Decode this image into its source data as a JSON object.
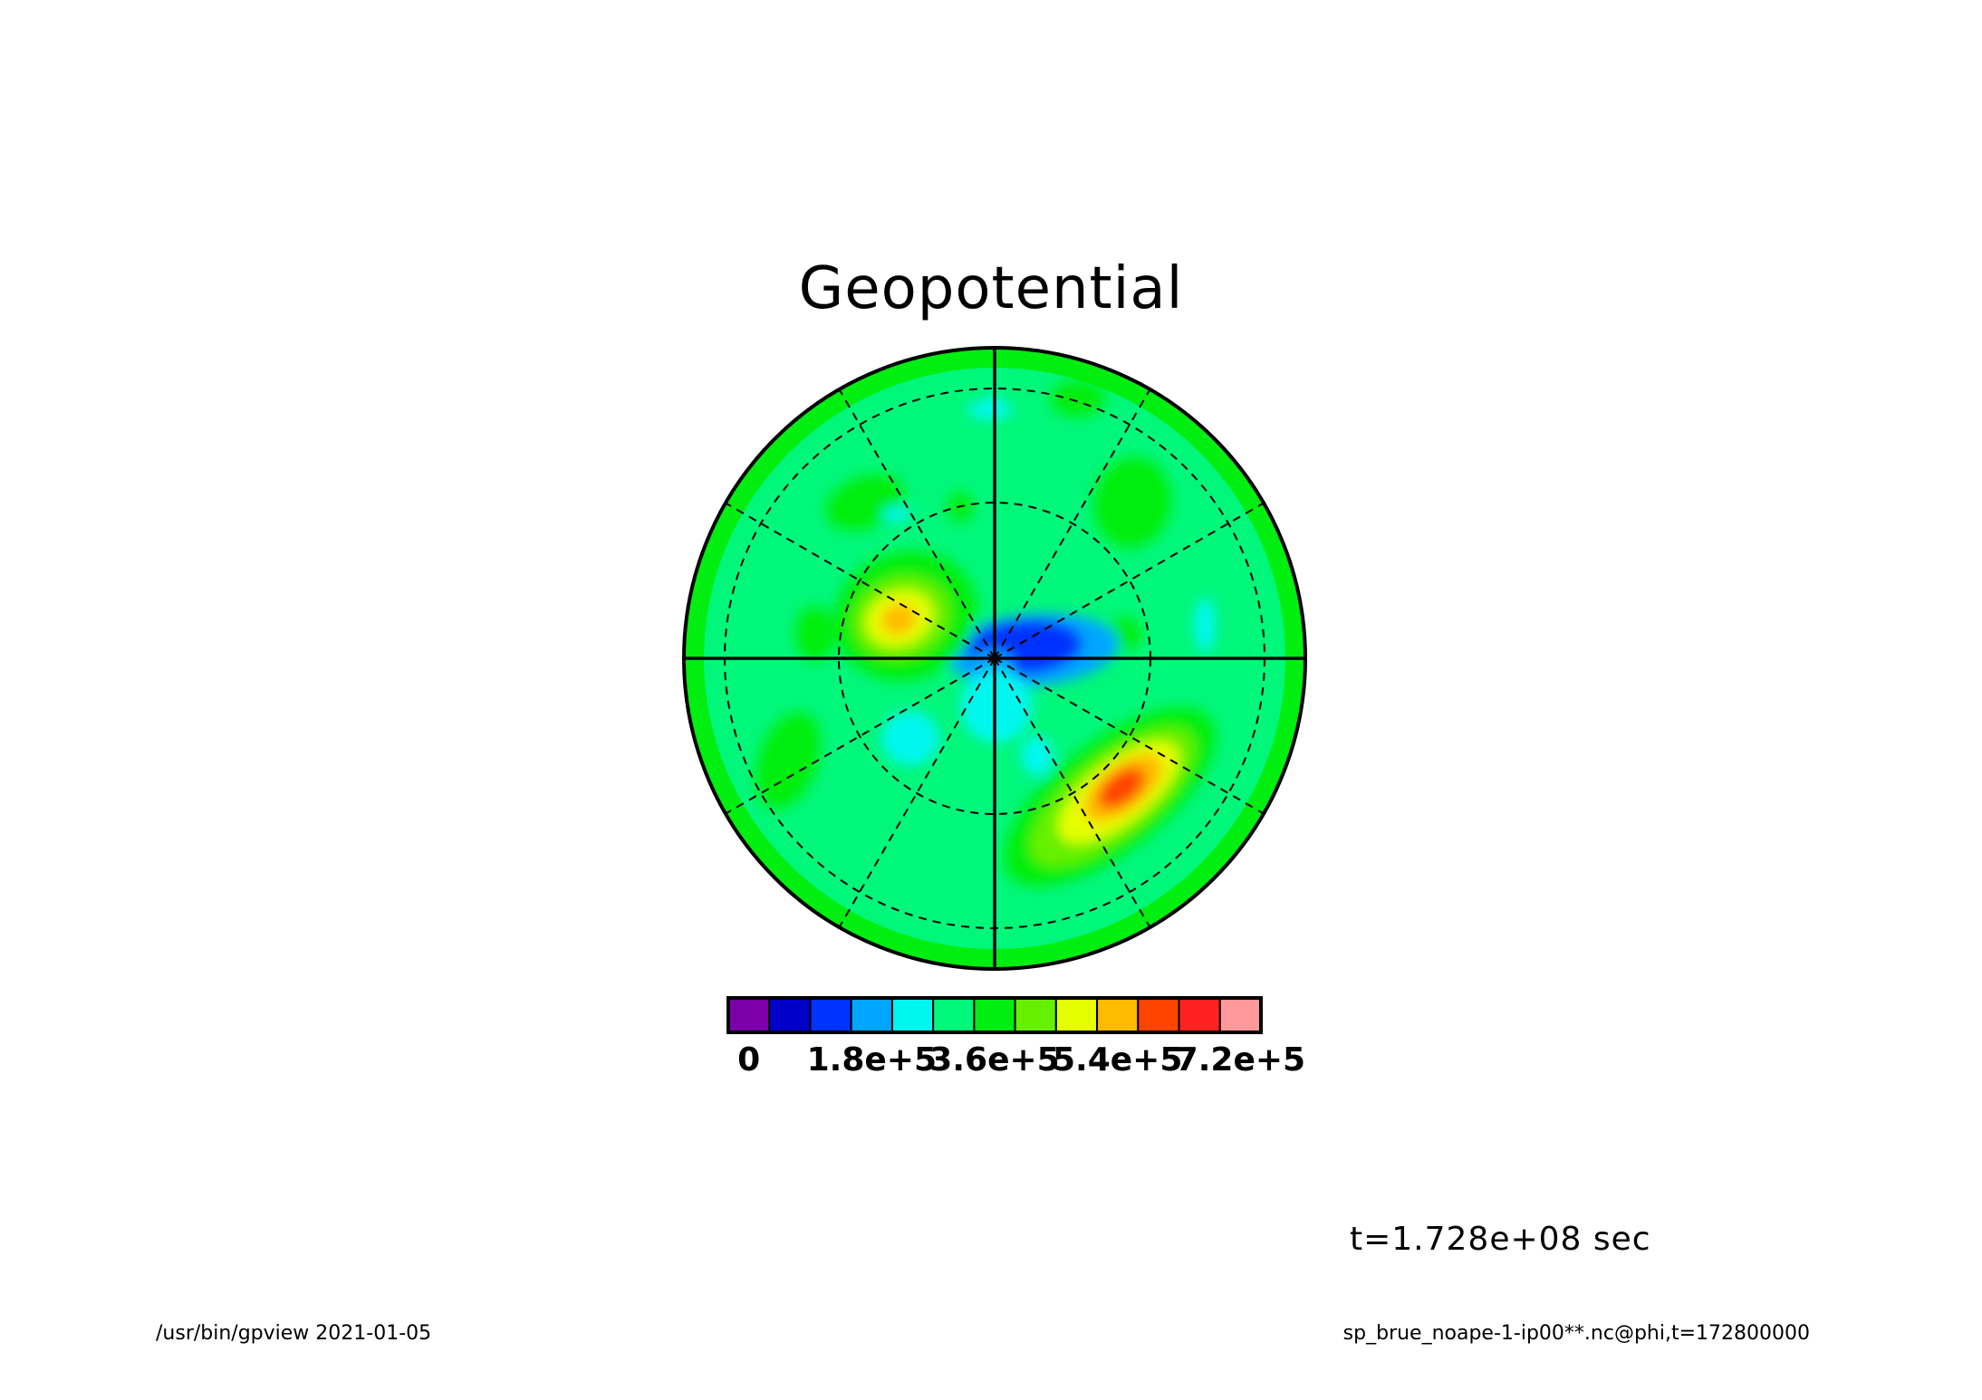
{
  "chart_data": {
    "type": "heatmap",
    "projection": "polar",
    "title": "Geopotential",
    "colorbar": {
      "levels": [
        0,
        60000,
        120000,
        180000,
        240000,
        300000,
        360000,
        420000,
        480000,
        540000,
        600000,
        660000,
        720000,
        780000
      ],
      "colors": [
        "#7b00aa",
        "#0000c8",
        "#0033ff",
        "#00a6ff",
        "#00f7ef",
        "#00f77a",
        "#00ee10",
        "#66f000",
        "#e6ff00",
        "#ffbb00",
        "#ff4400",
        "#ff2222",
        "#ff9999"
      ],
      "tick_labels": [
        "0",
        "1.8e+5",
        "3.6e+5",
        "5.4e+5",
        "7.2e+5"
      ],
      "tick_values": [
        0,
        180000,
        360000,
        540000,
        720000
      ]
    },
    "grid": true,
    "features": [
      {
        "kind": "background",
        "value": 320000
      },
      {
        "kind": "high",
        "value": 640000,
        "location": "lower-right"
      },
      {
        "kind": "high",
        "value": 560000,
        "location": "upper-left"
      },
      {
        "kind": "low",
        "value": 100000,
        "location": "center"
      }
    ],
    "annotation": "t=1.728e+08 sec"
  },
  "footer": {
    "left": "/usr/bin/gpview   2021-01-05",
    "right": "sp_brue_noape-1-ip00**.nc@phi,t=172800000"
  }
}
